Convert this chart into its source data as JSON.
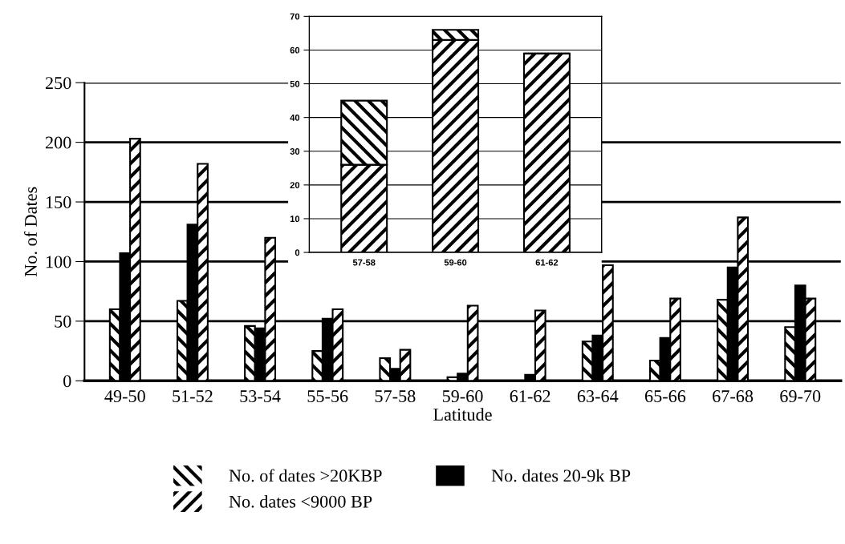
{
  "chart_data": [
    {
      "type": "bar",
      "xlabel": "Latitude",
      "ylabel": "No. of Dates",
      "categories": [
        "49-50",
        "51-52",
        "53-54",
        "55-56",
        "57-58",
        "59-60",
        "61-62",
        "63-64",
        "65-66",
        "67-68",
        "69-70"
      ],
      "series": [
        {
          "name": "No. of dates >20KBP",
          "color": "#000000",
          "values": [
            60,
            67,
            46,
            25,
            19,
            3,
            0,
            33,
            17,
            68,
            45
          ]
        },
        {
          "name": "No. dates 20-9k BP",
          "color": "#000000",
          "values": [
            107,
            131,
            44,
            52,
            10,
            6,
            5,
            38,
            36,
            95,
            80
          ]
        },
        {
          "name": "No. dates <9000 BP",
          "color": "#000000",
          "values": [
            203,
            182,
            120,
            60,
            26,
            63,
            59,
            97,
            69,
            137,
            69
          ]
        }
      ],
      "ylim": [
        0,
        250
      ],
      "yticks": [
        0,
        50,
        100,
        150,
        200,
        250
      ],
      "grid": "y",
      "legend": "bottom"
    },
    {
      "type": "bar",
      "stacked": true,
      "categories": [
        "57-58",
        "59-60",
        "61-62"
      ],
      "series": [
        {
          "color": "#000000",
          "values": [
            26,
            63,
            59
          ]
        },
        {
          "color": "#000000",
          "values": [
            19,
            3,
            0
          ]
        }
      ],
      "ylim": [
        0,
        70
      ],
      "yticks": [
        0,
        10,
        20,
        30,
        40,
        50,
        60,
        70
      ],
      "grid": "y"
    }
  ]
}
